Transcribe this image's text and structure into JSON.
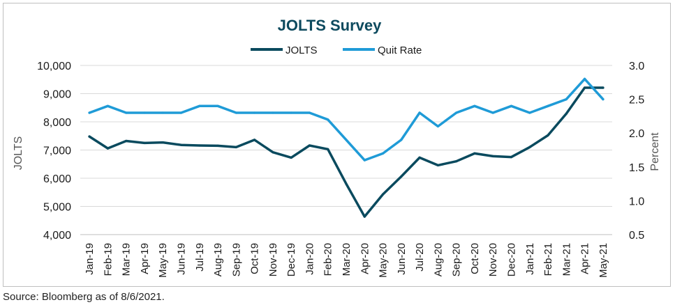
{
  "source_note": "Source: Bloomberg as of 8/6/2021.",
  "colors": {
    "jolts": "#0a4a5e",
    "quit_rate": "#1f9bd7",
    "grid": "#d9d9d9",
    "text": "#1a1a1a",
    "title": "#0d4a5e"
  },
  "chart_data": {
    "type": "line",
    "title": "JOLTS Survey",
    "xlabel": "",
    "ylabel": "JOLTS",
    "y2label": "Percent",
    "ylim": [
      4000,
      10000
    ],
    "y2lim": [
      0.5,
      3.0
    ],
    "yticks": [
      "4,000",
      "5,000",
      "6,000",
      "7,000",
      "8,000",
      "9,000",
      "10,000"
    ],
    "y2ticks": [
      "0.5",
      "1.0",
      "1.5",
      "2.0",
      "2.5",
      "3.0"
    ],
    "grid": true,
    "legend_position": "top-center",
    "categories": [
      "Jan-19",
      "Feb-19",
      "Mar-19",
      "Apr-19",
      "May-19",
      "Jun-19",
      "Jul-19",
      "Aug-19",
      "Sep-19",
      "Oct-19",
      "Nov-19",
      "Dec-19",
      "Jan-20",
      "Feb-20",
      "Mar-20",
      "Apr-20",
      "May-20",
      "Jun-20",
      "Jul-20",
      "Aug-20",
      "Sep-20",
      "Oct-20",
      "Nov-20",
      "Dec-20",
      "Jan-21",
      "Feb-21",
      "Mar-21",
      "Apr-21",
      "May-21"
    ],
    "series": [
      {
        "name": "JOLTS",
        "axis": "left",
        "color": "#0a4a5e",
        "values": [
          7480,
          7060,
          7320,
          7250,
          7270,
          7180,
          7160,
          7150,
          7100,
          7360,
          6920,
          6730,
          7160,
          7030,
          5800,
          4640,
          5430,
          6060,
          6730,
          6460,
          6600,
          6880,
          6780,
          6750,
          7100,
          7520,
          8290,
          9210,
          9210
        ]
      },
      {
        "name": "Quit Rate",
        "axis": "right",
        "color": "#1f9bd7",
        "values": [
          2.3,
          2.4,
          2.3,
          2.3,
          2.3,
          2.3,
          2.4,
          2.4,
          2.3,
          2.3,
          2.3,
          2.3,
          2.3,
          2.2,
          1.9,
          1.6,
          1.7,
          1.9,
          2.3,
          2.1,
          2.3,
          2.4,
          2.3,
          2.4,
          2.3,
          2.4,
          2.5,
          2.8,
          2.5
        ]
      }
    ]
  }
}
